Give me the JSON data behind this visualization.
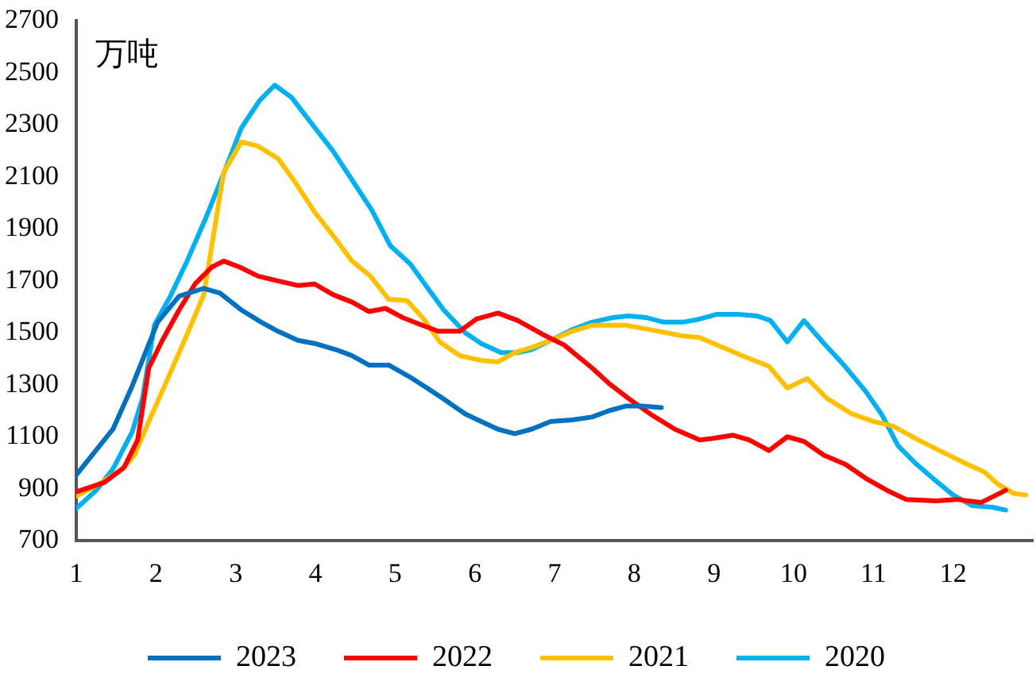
{
  "chart_data": {
    "type": "line",
    "annotations": [
      "万吨"
    ],
    "xlim": [
      1,
      13
    ],
    "xticks": [
      1,
      2,
      3,
      4,
      5,
      6,
      7,
      8,
      9,
      10,
      11,
      12
    ],
    "ylim": [
      700,
      2700
    ],
    "yticks": [
      700,
      900,
      1100,
      1300,
      1500,
      1700,
      1900,
      2100,
      2300,
      2500,
      2700
    ],
    "grid": false,
    "legend": "bottom",
    "marker": "none",
    "line_style": "solid",
    "series": [
      {
        "name": "2023",
        "color": "#0070c0",
        "x": [
          1,
          1.46,
          1.7,
          2.02,
          2.29,
          2.6,
          2.8,
          3.07,
          3.32,
          3.53,
          3.78,
          3.99,
          4.26,
          4.46,
          4.67,
          4.92,
          5.19,
          5.4,
          5.6,
          5.88,
          6.08,
          6.29,
          6.5,
          6.71,
          6.95,
          7.22,
          7.47,
          7.68,
          7.89,
          8.1,
          8.34
        ],
        "values": [
          953,
          1129,
          1294,
          1541,
          1641,
          1671,
          1653,
          1588,
          1541,
          1506,
          1471,
          1459,
          1435,
          1412,
          1376,
          1376,
          1329,
          1288,
          1247,
          1188,
          1159,
          1129,
          1112,
          1129,
          1159,
          1165,
          1176,
          1200,
          1218,
          1218,
          1212
        ]
      },
      {
        "name": "2022",
        "color": "#ff0000",
        "x": [
          1,
          1.35,
          1.6,
          1.77,
          1.91,
          2.08,
          2.29,
          2.49,
          2.7,
          2.85,
          3.05,
          3.28,
          3.53,
          3.78,
          3.99,
          4.22,
          4.46,
          4.67,
          4.88,
          5.09,
          5.34,
          5.54,
          5.81,
          6.02,
          6.29,
          6.54,
          6.85,
          7.12,
          7.47,
          7.68,
          7.93,
          8.2,
          8.51,
          8.82,
          8.99,
          9.24,
          9.44,
          9.69,
          9.92,
          10.13,
          10.38,
          10.65,
          10.9,
          11.17,
          11.41,
          11.79,
          12.04,
          12.35,
          12.66
        ],
        "values": [
          888,
          924,
          982,
          1088,
          1365,
          1471,
          1588,
          1688,
          1753,
          1776,
          1753,
          1718,
          1700,
          1682,
          1688,
          1647,
          1618,
          1582,
          1594,
          1559,
          1529,
          1506,
          1506,
          1553,
          1576,
          1547,
          1494,
          1453,
          1365,
          1306,
          1247,
          1188,
          1129,
          1088,
          1094,
          1106,
          1088,
          1047,
          1100,
          1082,
          1029,
          994,
          941,
          894,
          859,
          853,
          859,
          847,
          894
        ]
      },
      {
        "name": "2021",
        "color": "#ffc000",
        "x": [
          1,
          1.25,
          1.56,
          1.73,
          1.91,
          2.08,
          2.39,
          2.6,
          2.85,
          3.07,
          3.28,
          3.53,
          3.74,
          3.99,
          4.26,
          4.46,
          4.69,
          4.92,
          5.15,
          5.36,
          5.56,
          5.81,
          6.08,
          6.29,
          6.5,
          6.75,
          6.95,
          7.22,
          7.47,
          7.89,
          8.2,
          8.61,
          8.82,
          9.13,
          9.4,
          9.69,
          9.92,
          10.17,
          10.42,
          10.73,
          11,
          11.25,
          11.56,
          11.83,
          12.18,
          12.39,
          12.56,
          12.76,
          12.91
        ],
        "values": [
          871,
          912,
          971,
          1029,
          1159,
          1276,
          1494,
          1647,
          2118,
          2235,
          2218,
          2171,
          2082,
          1965,
          1859,
          1776,
          1718,
          1629,
          1624,
          1553,
          1465,
          1412,
          1394,
          1388,
          1424,
          1447,
          1471,
          1506,
          1529,
          1529,
          1512,
          1488,
          1482,
          1441,
          1406,
          1371,
          1288,
          1324,
          1247,
          1188,
          1159,
          1141,
          1088,
          1047,
          994,
          965,
          918,
          882,
          876
        ]
      },
      {
        "name": "2020",
        "color": "#00b0f0",
        "x": [
          1,
          1.25,
          1.46,
          1.7,
          1.83,
          1.98,
          2.18,
          2.39,
          2.64,
          2.87,
          3.07,
          3.3,
          3.49,
          3.7,
          3.95,
          4.22,
          4.46,
          4.71,
          4.94,
          5.19,
          5.44,
          5.61,
          5.88,
          6.08,
          6.33,
          6.54,
          6.71,
          6.95,
          7.22,
          7.47,
          7.74,
          7.93,
          8.14,
          8.37,
          8.61,
          8.82,
          9.03,
          9.3,
          9.54,
          9.71,
          9.92,
          10.13,
          10.38,
          10.63,
          10.9,
          11.1,
          11.31,
          11.52,
          11.79,
          12,
          12.24,
          12.49,
          12.66
        ],
        "values": [
          824,
          894,
          976,
          1118,
          1247,
          1529,
          1641,
          1776,
          1953,
          2129,
          2288,
          2394,
          2453,
          2406,
          2306,
          2200,
          2088,
          1971,
          1835,
          1765,
          1659,
          1588,
          1500,
          1459,
          1424,
          1424,
          1435,
          1471,
          1512,
          1541,
          1559,
          1565,
          1559,
          1541,
          1541,
          1553,
          1571,
          1571,
          1565,
          1547,
          1465,
          1547,
          1459,
          1376,
          1276,
          1188,
          1065,
          1000,
          929,
          876,
          835,
          829,
          818
        ]
      }
    ]
  }
}
